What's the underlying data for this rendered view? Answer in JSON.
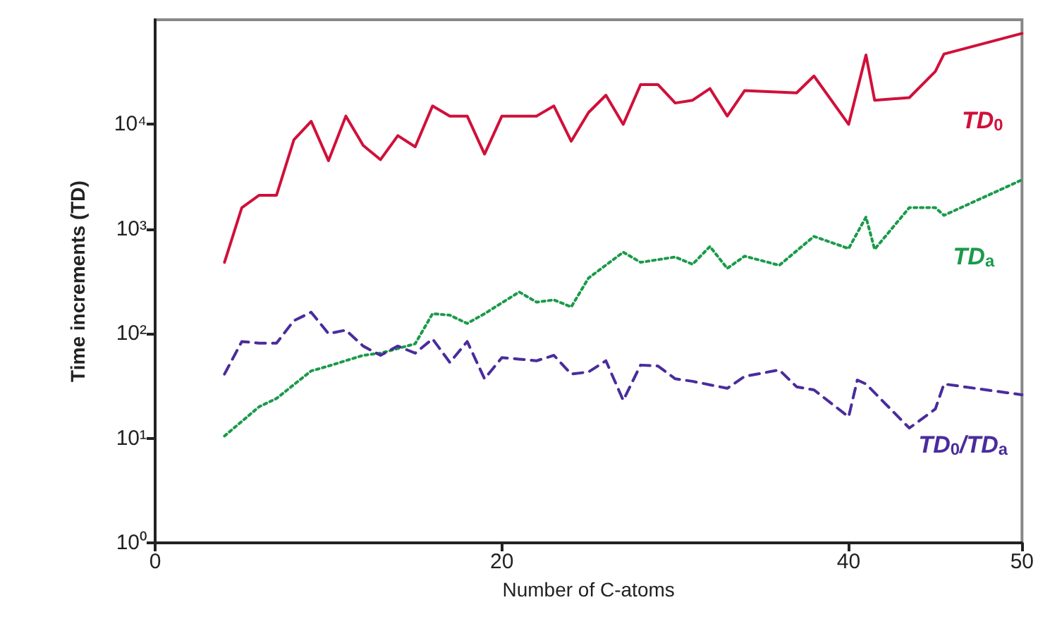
{
  "chart_data": {
    "type": "line",
    "xlabel": "Number of C-atoms",
    "ylabel": "Time increments (TD)",
    "log": "y",
    "grid": false,
    "legend": false,
    "marker": "none",
    "xlim": [
      0,
      50
    ],
    "xticks": [
      0,
      20,
      40,
      50
    ],
    "ylim": [
      1,
      100000
    ],
    "yticks": [
      {
        "value": 1,
        "label": "10⁰"
      },
      {
        "value": 10,
        "label": "10¹"
      },
      {
        "value": 100,
        "label": "10²"
      },
      {
        "value": 1000,
        "label": "10³"
      },
      {
        "value": 10000,
        "label": "10⁴"
      }
    ],
    "series": [
      {
        "name": "TD$_{0}$",
        "color": "#d0103a",
        "line_style": "solid",
        "x": [
          4,
          5,
          6,
          7,
          8,
          9,
          10,
          11,
          12,
          13,
          14,
          15,
          16,
          17,
          18,
          19,
          20,
          21,
          22,
          23,
          24,
          25,
          26,
          27,
          28,
          29,
          30,
          31,
          32,
          33,
          34,
          37,
          38,
          40,
          41,
          41.5,
          43.5,
          45,
          45.5,
          50
        ],
        "values": [
          480,
          1600,
          2100,
          2100,
          7100,
          10700,
          4500,
          12000,
          6300,
          4600,
          7800,
          6100,
          15000,
          12000,
          12000,
          5200,
          12000,
          12000,
          12000,
          15000,
          6900,
          13000,
          19000,
          10000,
          24000,
          24000,
          16000,
          17000,
          22000,
          12000,
          21000,
          20000,
          29000,
          10000,
          46000,
          17000,
          18000,
          32000,
          47000,
          74000
        ]
      },
      {
        "name": "TD$_{a}$",
        "color": "#1a9a4a",
        "line_style": "dotted",
        "x": [
          4,
          6,
          7,
          9,
          10,
          12,
          13,
          14,
          15,
          16,
          17,
          18,
          19,
          21,
          22,
          23,
          24,
          25,
          27,
          28,
          30,
          31,
          32,
          33,
          34,
          36,
          38,
          40,
          41,
          41.5,
          43.5,
          45,
          45.5,
          50
        ],
        "values": [
          10.5,
          20,
          24,
          44,
          49,
          62,
          65,
          72,
          80,
          155,
          150,
          125,
          155,
          250,
          200,
          210,
          180,
          340,
          600,
          480,
          540,
          460,
          680,
          420,
          550,
          450,
          850,
          650,
          1300,
          640,
          1600,
          1600,
          1350,
          2950
        ]
      },
      {
        "name": "TD$_{0}$/TD$_{a}$",
        "color": "#4a2c9c",
        "line_style": "dashed",
        "x": [
          4,
          5,
          6,
          7,
          8,
          9,
          10,
          11,
          12,
          13,
          14,
          15,
          16,
          17,
          18,
          19,
          20,
          21,
          22,
          23,
          24,
          25,
          26,
          27,
          28,
          29,
          30,
          31,
          33,
          34,
          36,
          37,
          38,
          40,
          40.5,
          41,
          43.5,
          45,
          45.5,
          50
        ],
        "values": [
          41,
          84,
          81,
          81,
          133,
          160,
          100,
          108,
          76,
          62,
          76,
          65,
          89,
          53,
          84,
          37,
          59,
          57,
          55,
          62,
          41,
          43,
          55,
          23,
          50,
          49,
          37,
          35,
          30,
          39,
          45,
          31,
          29,
          16,
          36,
          33,
          12.5,
          19,
          33,
          26
        ]
      }
    ]
  }
}
